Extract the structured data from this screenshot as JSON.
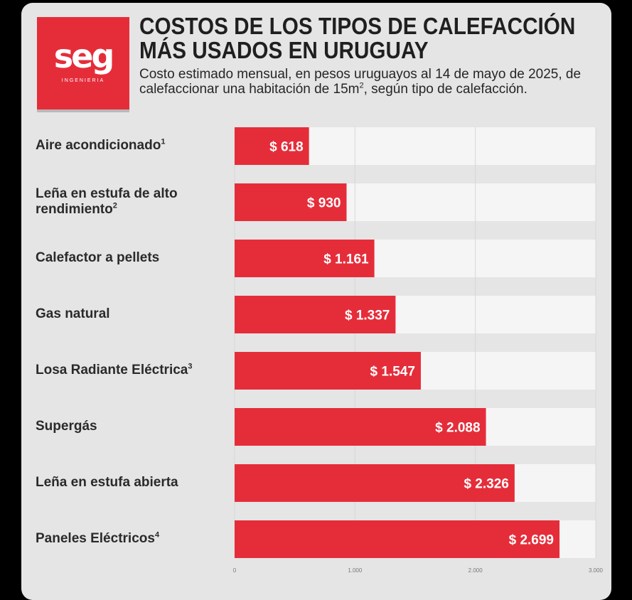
{
  "header": {
    "logo_word": "seg",
    "logo_sub": "INGENIERIA",
    "title_line1": "COSTOS DE LOS TIPOS DE CALEFACCIÓN",
    "title_line2": "MÁS USADOS EN URUGUAY",
    "subtitle_part1": "Costo estimado mensual, en pesos uruguayos al 14 de mayo de 2025, de calefaccionar una habitación de 15m",
    "subtitle_sup": "2",
    "subtitle_part2": ", según tipo de calefacción."
  },
  "chart_data": {
    "type": "bar",
    "orientation": "horizontal",
    "categories": [
      {
        "name": "Aire acondicionado",
        "note": "1"
      },
      {
        "name": "Leña en estufa de alto rendimiento",
        "note": "2"
      },
      {
        "name": "Calefactor a pellets",
        "note": ""
      },
      {
        "name": "Gas natural",
        "note": ""
      },
      {
        "name": "Losa Radiante Eléctrica",
        "note": "3"
      },
      {
        "name": "Supergás",
        "note": ""
      },
      {
        "name": "Leña en estufa abierta",
        "note": ""
      },
      {
        "name": "Paneles Eléctricos",
        "note": "4"
      }
    ],
    "values": [
      618,
      930,
      1161,
      1337,
      1547,
      2088,
      2326,
      2699
    ],
    "value_labels": [
      "$ 618",
      "$ 930",
      "$ 1.161",
      "$ 1.337",
      "$ 1.547",
      "$ 2.088",
      "$ 2.326",
      "$ 2.699"
    ],
    "xlim": [
      0,
      3000
    ],
    "x_ticks": [
      0,
      1000,
      2000,
      3000
    ],
    "x_tick_labels": [
      "0",
      "1.000",
      "2.000",
      "3.000"
    ],
    "grid": true,
    "colors": {
      "bar": "#e52d3a",
      "track": "#f5f5f5",
      "text_on_bar": "#ffffff"
    }
  }
}
